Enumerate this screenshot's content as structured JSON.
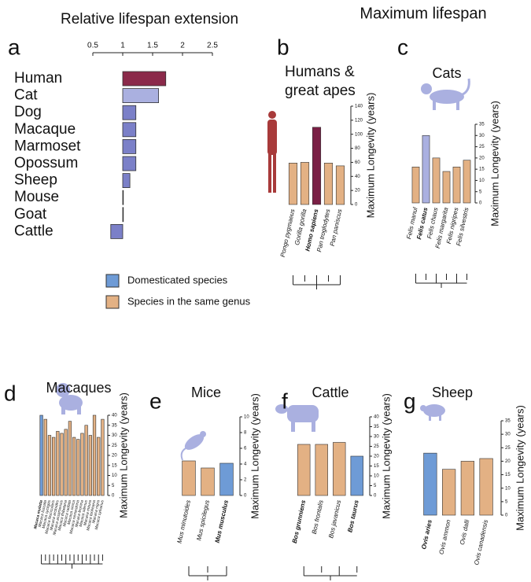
{
  "header": "Maximum lifespan",
  "legend": [
    {
      "label": "Domesticated species",
      "color": "#6e9bd6"
    },
    {
      "label": "Species in the same genus",
      "color": "#e3b184"
    }
  ],
  "chart_data": [
    {
      "type": "hbar",
      "panel": "a",
      "title": "Relative lifespan extension",
      "categories": [
        "Human",
        "Cat",
        "Dog",
        "Macaque",
        "Marmoset",
        "Opossum",
        "Sheep",
        "Mouse",
        "Goat",
        "Cattle"
      ],
      "values": [
        1.72,
        1.6,
        1.22,
        1.22,
        1.22,
        1.22,
        1.12,
        1.0,
        1.0,
        0.8
      ],
      "colors": [
        "#8b2a4a",
        "#aab0e0",
        "#7b80c8",
        "#7b80c8",
        "#7b80c8",
        "#7b80c8",
        "#7b80c8",
        "#7b80c8",
        "#7b80c8",
        "#7b80c8"
      ],
      "base": 1,
      "xlim": [
        0.5,
        2.5
      ],
      "xticks": [
        0.5,
        1,
        1.5,
        2.0,
        2.5
      ]
    },
    {
      "type": "bar",
      "panel": "b",
      "title": "Humans & great apes",
      "ylabel": "Maximum Longevity (years)",
      "categories": [
        "Pongo pygmaeus",
        "Gorilla gorilla",
        "Homo sapiens",
        "Pan troglodytes",
        "Pan paniscus"
      ],
      "values": [
        59,
        60,
        110,
        59,
        55
      ],
      "highlight": 2,
      "colors": [
        "#e3b184",
        "#e3b184",
        "#7a1f45",
        "#e3b184",
        "#e3b184"
      ],
      "ylim": [
        0,
        140
      ],
      "yticks": [
        0,
        20,
        40,
        60,
        80,
        100,
        120,
        140
      ]
    },
    {
      "type": "bar",
      "panel": "c",
      "title": "Cats",
      "ylabel": "Maximum Longevity (years)",
      "categories": [
        "Felis manul",
        "Felis catus",
        "Felis chaus",
        "Felis margarita",
        "Felis nigripes",
        "Felis silvestris"
      ],
      "values": [
        16,
        30,
        20,
        14,
        16,
        19
      ],
      "highlight": 1,
      "colors": [
        "#e3b184",
        "#aab0e0",
        "#e3b184",
        "#e3b184",
        "#e3b184",
        "#e3b184"
      ],
      "ylim": [
        0,
        35
      ],
      "yticks": [
        0,
        5,
        10,
        15,
        20,
        25,
        30,
        35
      ]
    },
    {
      "type": "bar",
      "panel": "d",
      "title": "Macaques",
      "ylabel": "Maximum Longevity (years)",
      "categories": [
        "Macaca mulatta",
        "Macaca fuscata",
        "Macaca cyclopis",
        "Macaca fascicularis",
        "Macaca arctoides",
        "Macaca assamensis",
        "Macaca thibetana",
        "Macaca radiata",
        "Macaca sinica",
        "Macaca nemestrina",
        "Macaca leonina",
        "Macaca silenus",
        "Macaca maura",
        "Macaca tonkeana",
        "Macaca nigra",
        "Macaca sylvanus"
      ],
      "values": [
        40,
        38,
        30,
        29,
        32,
        31,
        33,
        37,
        29,
        28,
        31,
        35,
        30,
        40,
        29,
        38
      ],
      "highlight": 0,
      "colors": [
        "#6e9bd6",
        "#e3b184",
        "#e3b184",
        "#e3b184",
        "#e3b184",
        "#e3b184",
        "#e3b184",
        "#e3b184",
        "#e3b184",
        "#e3b184",
        "#e3b184",
        "#e3b184",
        "#e3b184",
        "#e3b184",
        "#e3b184",
        "#e3b184"
      ],
      "ylim": [
        0,
        40
      ],
      "yticks": [
        0,
        5,
        10,
        15,
        20,
        25,
        30,
        35,
        40
      ]
    },
    {
      "type": "bar",
      "panel": "e",
      "title": "Mice",
      "ylabel": "Maximum Longevity (years)",
      "categories": [
        "Mus minutoides",
        "Mus spicilegus",
        "Mus musculus"
      ],
      "values": [
        4.4,
        3.5,
        4.1
      ],
      "highlight": 2,
      "colors": [
        "#e3b184",
        "#e3b184",
        "#6e9bd6"
      ],
      "ylim": [
        0,
        10
      ],
      "yticks": [
        0,
        2,
        4,
        6,
        8,
        10
      ]
    },
    {
      "type": "bar",
      "panel": "f",
      "title": "Cattle",
      "ylabel": "Maximum Longevity (years)",
      "categories": [
        "Bos grunniens",
        "Bos frontalis",
        "Bos javanicus",
        "Bos taurus"
      ],
      "values": [
        26,
        26,
        27,
        20
      ],
      "highlight": [
        0,
        3
      ],
      "colors": [
        "#e3b184",
        "#e3b184",
        "#e3b184",
        "#6e9bd6"
      ],
      "ylim": [
        0,
        40
      ],
      "yticks": [
        0,
        5,
        10,
        15,
        20,
        25,
        30,
        35,
        40
      ]
    },
    {
      "type": "bar",
      "panel": "g",
      "title": "Sheep",
      "ylabel": "Maximum Longevity (years)",
      "categories": [
        "Ovis aries",
        "Ovis ammon",
        "Ovis dalli",
        "Ovis canadensis"
      ],
      "values": [
        23,
        17,
        20,
        21
      ],
      "highlight": 0,
      "colors": [
        "#6e9bd6",
        "#e3b184",
        "#e3b184",
        "#e3b184"
      ],
      "ylim": [
        0,
        35
      ],
      "yticks": [
        0,
        5,
        10,
        15,
        20,
        25,
        30,
        35
      ]
    }
  ]
}
